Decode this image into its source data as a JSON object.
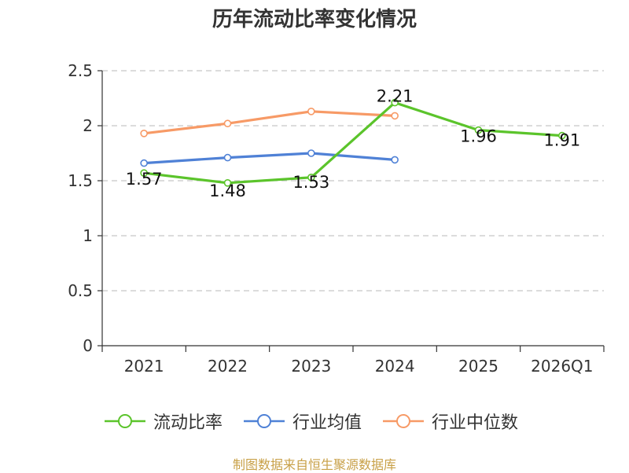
{
  "chart_data": {
    "type": "line",
    "title": "历年流动比率变化情况",
    "categories": [
      "2021",
      "2022",
      "2023",
      "2024",
      "2025",
      "2026Q1"
    ],
    "yticks": [
      "0",
      "0.5",
      "1",
      "1.5",
      "2",
      "2.5"
    ],
    "ylim": [
      0,
      2.5
    ],
    "grid": true,
    "legend_position": "bottom",
    "series": [
      {
        "name": "流动比率",
        "color": "#5bc42b",
        "values": [
          1.57,
          1.48,
          1.53,
          2.21,
          1.96,
          1.91
        ],
        "labels": [
          "1.57",
          "1.48",
          "1.53",
          "2.21",
          "1.96",
          "1.91"
        ],
        "show_labels": true
      },
      {
        "name": "行业均值",
        "color": "#4f81d6",
        "values": [
          1.66,
          1.71,
          1.75,
          1.69,
          null,
          null
        ],
        "show_labels": false
      },
      {
        "name": "行业中位数",
        "color": "#f79a66",
        "values": [
          1.93,
          2.02,
          2.13,
          2.09,
          null,
          null
        ],
        "show_labels": false
      }
    ]
  },
  "source": "制图数据来自恒生聚源数据库"
}
